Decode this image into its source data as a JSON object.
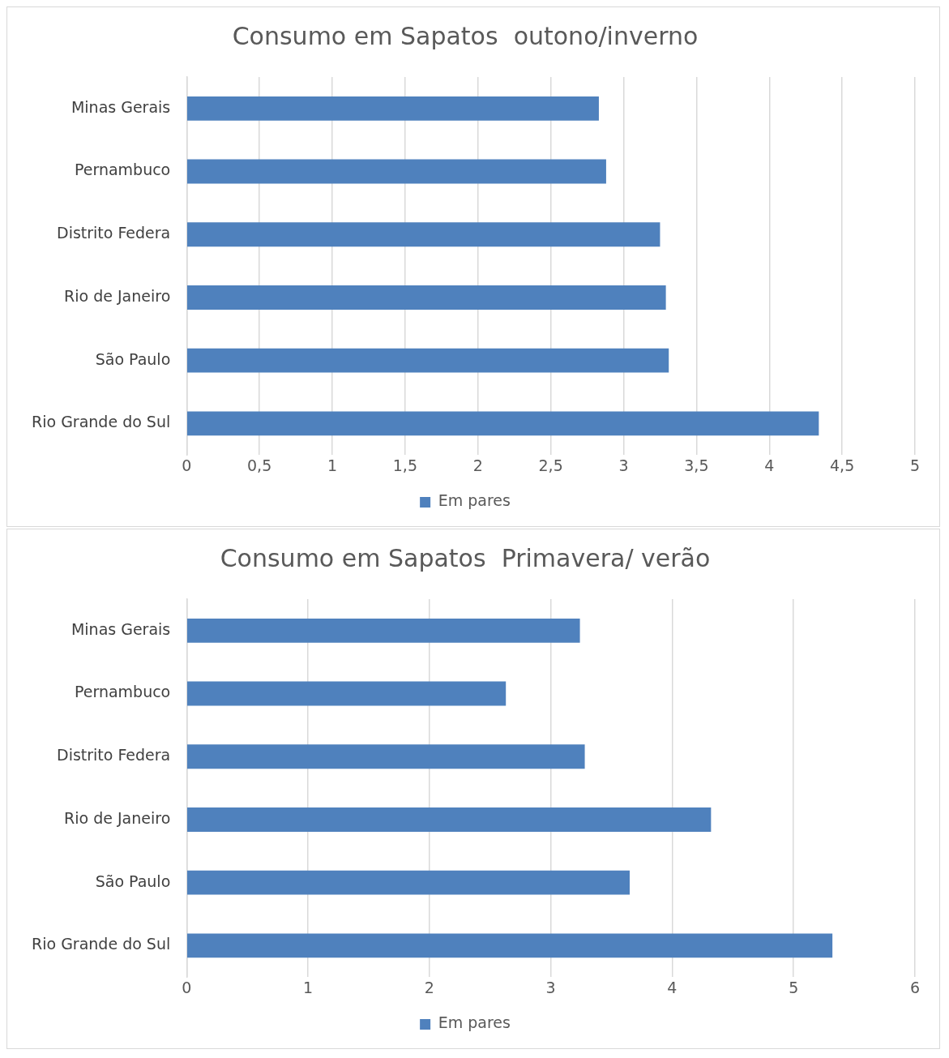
{
  "chart_data": [
    {
      "type": "bar",
      "orientation": "horizontal",
      "title": "Consumo em Sapatos  outono/inverno",
      "categories": [
        "Minas Gerais",
        "Pernambuco",
        "Distrito Federa",
        "Rio de Janeiro",
        "São Paulo",
        "Rio Grande do Sul"
      ],
      "series": [
        {
          "name": "Em pares",
          "color": "#4f81bd",
          "values": [
            2.83,
            2.88,
            3.25,
            3.29,
            3.31,
            4.34
          ]
        }
      ],
      "xlim": [
        0,
        5
      ],
      "xticks": [
        0,
        {
          "value": 0.5,
          "label": "0,5"
        },
        1,
        {
          "value": 1.5,
          "label": "1,5"
        },
        2,
        {
          "value": 2.5,
          "label": "2,5"
        },
        3,
        {
          "value": 3.5,
          "label": "3,5"
        },
        4,
        {
          "value": 4.5,
          "label": "4,5"
        },
        5
      ],
      "grid": "x",
      "legend": "bottom"
    },
    {
      "type": "bar",
      "orientation": "horizontal",
      "title": "Consumo em Sapatos  Primavera/ verão",
      "categories": [
        "Minas Gerais",
        "Pernambuco",
        "Distrito Federa",
        "Rio de Janeiro",
        "São Paulo",
        "Rio Grande do Sul"
      ],
      "series": [
        {
          "name": "Em pares",
          "color": "#4f81bd",
          "values": [
            3.24,
            2.63,
            3.28,
            4.32,
            3.65,
            5.32
          ]
        }
      ],
      "xlim": [
        0,
        6
      ],
      "xticks": [
        0,
        1,
        2,
        3,
        4,
        5,
        6
      ],
      "grid": "x",
      "legend": "bottom"
    }
  ]
}
